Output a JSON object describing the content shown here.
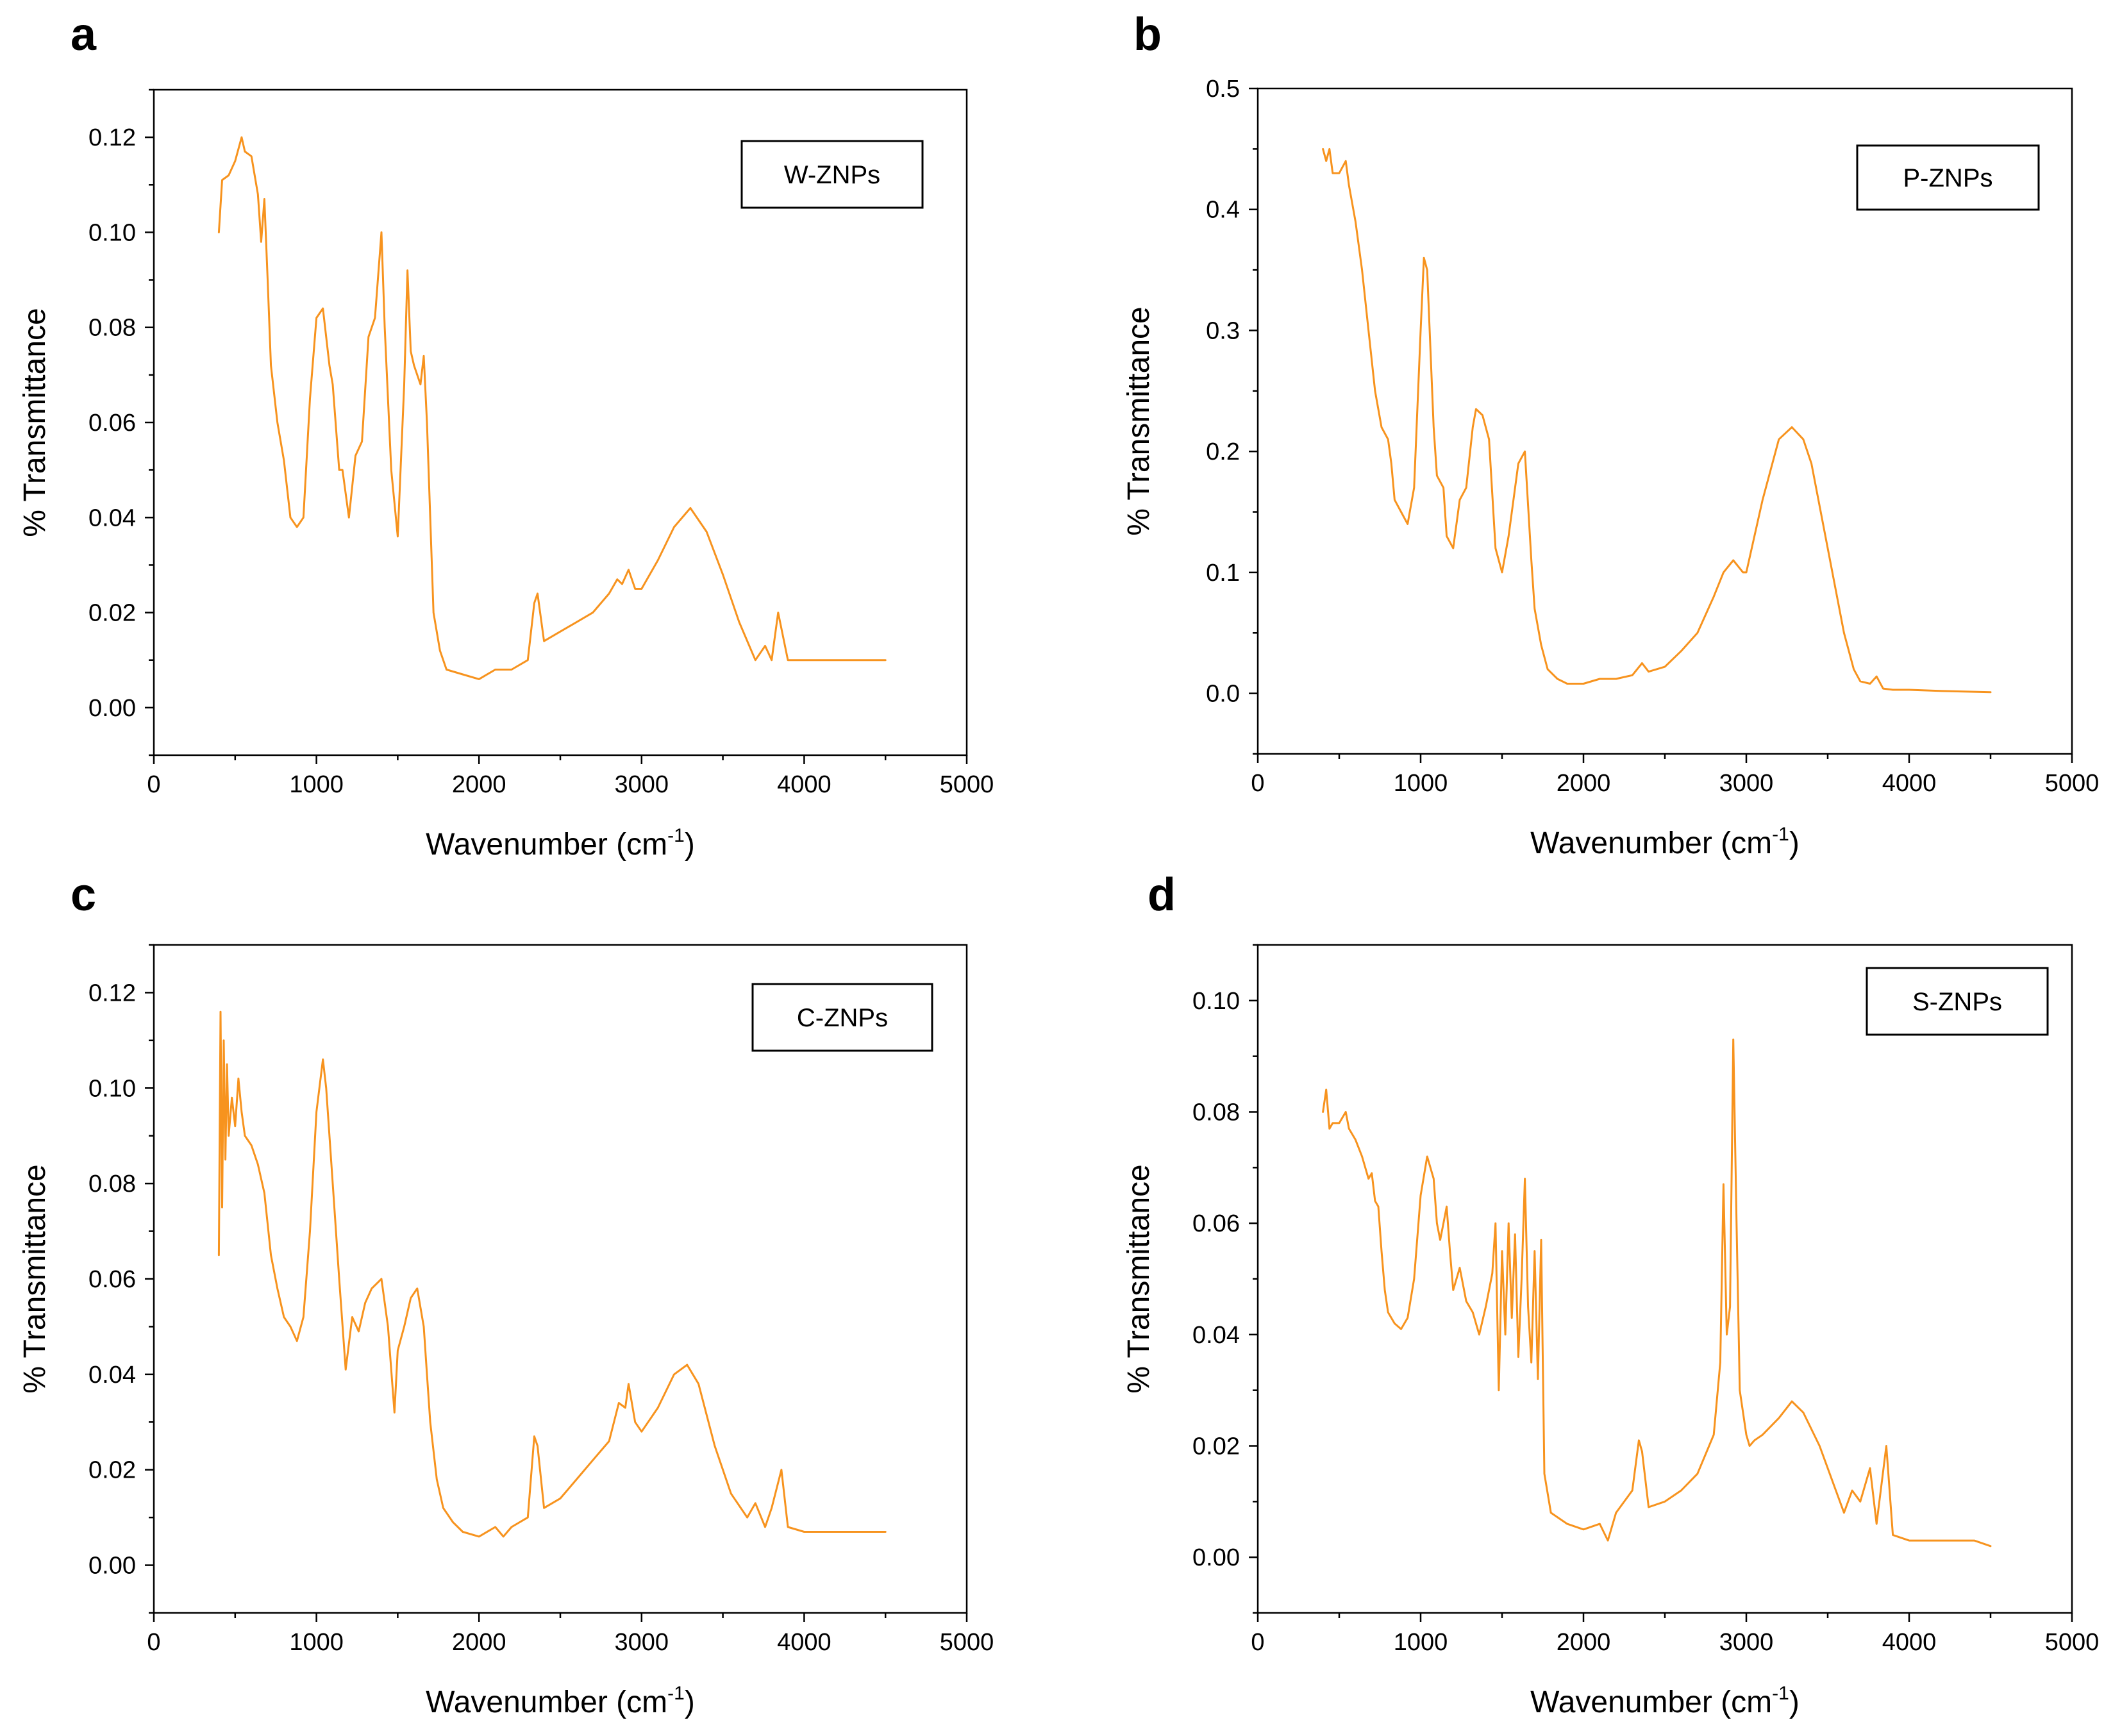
{
  "chart_data": [
    {
      "panel": "a",
      "type": "line",
      "legend": "W-ZNPs",
      "xlabel": "Wavenumber (cm",
      "xlabel_sup": "-1",
      "xlabel_end": ")",
      "ylabel": "% Transmittance",
      "xlim": [
        0,
        5000
      ],
      "ylim": [
        -0.01,
        0.13
      ],
      "xticks": [
        0,
        1000,
        2000,
        3000,
        4000,
        5000
      ],
      "xtick_labels": [
        "0",
        "1000",
        "2000",
        "3000",
        "4000",
        "5000"
      ],
      "yticks": [
        0,
        0.02,
        0.04,
        0.06,
        0.08,
        0.1,
        0.12
      ],
      "ytick_labels": [
        "0.00",
        "0.02",
        "0.04",
        "0.06",
        "0.08",
        "0.10",
        "0.12"
      ],
      "color": "#F7931E",
      "series": [
        {
          "name": "W-ZNPs",
          "x": [
            400,
            420,
            460,
            500,
            540,
            560,
            600,
            640,
            660,
            680,
            700,
            720,
            760,
            800,
            840,
            880,
            920,
            960,
            1000,
            1040,
            1080,
            1100,
            1140,
            1160,
            1200,
            1240,
            1280,
            1320,
            1360,
            1400,
            1420,
            1460,
            1500,
            1540,
            1560,
            1580,
            1600,
            1640,
            1660,
            1680,
            1700,
            1720,
            1760,
            1800,
            1900,
            2000,
            2100,
            2200,
            2300,
            2340,
            2360,
            2400,
            2500,
            2600,
            2700,
            2800,
            2850,
            2880,
            2920,
            2960,
            3000,
            3100,
            3200,
            3300,
            3400,
            3500,
            3600,
            3700,
            3760,
            3800,
            3840,
            3900,
            4000,
            4200,
            4500
          ],
          "y": [
            0.1,
            0.111,
            0.112,
            0.115,
            0.12,
            0.117,
            0.116,
            0.108,
            0.098,
            0.107,
            0.09,
            0.072,
            0.06,
            0.052,
            0.04,
            0.038,
            0.04,
            0.065,
            0.082,
            0.084,
            0.072,
            0.068,
            0.05,
            0.05,
            0.04,
            0.053,
            0.056,
            0.078,
            0.082,
            0.1,
            0.08,
            0.05,
            0.036,
            0.068,
            0.092,
            0.075,
            0.072,
            0.068,
            0.074,
            0.06,
            0.04,
            0.02,
            0.012,
            0.008,
            0.007,
            0.006,
            0.008,
            0.008,
            0.01,
            0.022,
            0.024,
            0.014,
            0.016,
            0.018,
            0.02,
            0.024,
            0.027,
            0.026,
            0.029,
            0.025,
            0.025,
            0.031,
            0.038,
            0.042,
            0.037,
            0.028,
            0.018,
            0.01,
            0.013,
            0.01,
            0.02,
            0.01,
            0.01,
            0.01,
            0.01
          ]
        }
      ]
    },
    {
      "panel": "b",
      "type": "line",
      "legend": "P-ZNPs",
      "xlabel": "Wavenumber (cm",
      "xlabel_sup": "-1",
      "xlabel_end": ")",
      "ylabel": "% Transmittance",
      "xlim": [
        0,
        5000
      ],
      "ylim": [
        -0.05,
        0.5
      ],
      "xticks": [
        0,
        1000,
        2000,
        3000,
        4000,
        5000
      ],
      "xtick_labels": [
        "0",
        "1000",
        "2000",
        "3000",
        "4000",
        "5000"
      ],
      "yticks": [
        0,
        0.1,
        0.2,
        0.3,
        0.4,
        0.5
      ],
      "ytick_labels": [
        "0.0",
        "0.1",
        "0.2",
        "0.3",
        "0.4",
        "0.5"
      ],
      "color": "#F7931E",
      "series": [
        {
          "name": "P-ZNPs",
          "x": [
            400,
            420,
            440,
            460,
            500,
            540,
            560,
            600,
            640,
            680,
            720,
            760,
            800,
            820,
            840,
            880,
            920,
            960,
            1000,
            1020,
            1040,
            1080,
            1100,
            1140,
            1160,
            1200,
            1240,
            1280,
            1320,
            1340,
            1380,
            1420,
            1460,
            1500,
            1540,
            1600,
            1640,
            1680,
            1700,
            1740,
            1780,
            1840,
            1900,
            2000,
            2100,
            2200,
            2300,
            2360,
            2400,
            2500,
            2600,
            2700,
            2800,
            2860,
            2920,
            2980,
            3000,
            3100,
            3200,
            3280,
            3350,
            3400,
            3500,
            3600,
            3660,
            3700,
            3760,
            3800,
            3840,
            3900,
            4000,
            4200,
            4500
          ],
          "y": [
            0.45,
            0.44,
            0.45,
            0.43,
            0.43,
            0.44,
            0.42,
            0.39,
            0.35,
            0.3,
            0.25,
            0.22,
            0.21,
            0.19,
            0.16,
            0.15,
            0.14,
            0.17,
            0.3,
            0.36,
            0.35,
            0.22,
            0.18,
            0.17,
            0.13,
            0.12,
            0.16,
            0.17,
            0.22,
            0.235,
            0.23,
            0.21,
            0.12,
            0.1,
            0.13,
            0.19,
            0.2,
            0.11,
            0.07,
            0.04,
            0.02,
            0.012,
            0.008,
            0.008,
            0.012,
            0.012,
            0.015,
            0.025,
            0.018,
            0.022,
            0.035,
            0.05,
            0.08,
            0.1,
            0.11,
            0.1,
            0.1,
            0.16,
            0.21,
            0.22,
            0.21,
            0.19,
            0.12,
            0.05,
            0.02,
            0.01,
            0.008,
            0.014,
            0.004,
            0.003,
            0.003,
            0.002,
            0.001
          ]
        }
      ]
    },
    {
      "panel": "c",
      "type": "line",
      "legend": "C-ZNPs",
      "xlabel": "Wavenumber (cm",
      "xlabel_sup": "-1",
      "xlabel_end": ")",
      "ylabel": "% Transmittance",
      "xlim": [
        0,
        5000
      ],
      "ylim": [
        -0.01,
        0.13
      ],
      "xticks": [
        0,
        1000,
        2000,
        3000,
        4000,
        5000
      ],
      "xtick_labels": [
        "0",
        "1000",
        "2000",
        "3000",
        "4000",
        "5000"
      ],
      "yticks": [
        0,
        0.02,
        0.04,
        0.06,
        0.08,
        0.1,
        0.12
      ],
      "ytick_labels": [
        "0.00",
        "0.02",
        "0.04",
        "0.06",
        "0.08",
        "0.10",
        "0.12"
      ],
      "color": "#F7931E",
      "series": [
        {
          "name": "C-ZNPs",
          "x": [
            400,
            410,
            420,
            430,
            440,
            450,
            460,
            480,
            500,
            520,
            540,
            560,
            600,
            640,
            680,
            720,
            760,
            800,
            840,
            880,
            920,
            960,
            1000,
            1040,
            1060,
            1100,
            1140,
            1180,
            1220,
            1260,
            1300,
            1340,
            1400,
            1440,
            1480,
            1500,
            1540,
            1580,
            1620,
            1660,
            1680,
            1700,
            1740,
            1780,
            1840,
            1900,
            2000,
            2100,
            2150,
            2200,
            2300,
            2340,
            2360,
            2400,
            2500,
            2600,
            2700,
            2800,
            2860,
            2900,
            2920,
            2960,
            3000,
            3100,
            3200,
            3280,
            3350,
            3450,
            3550,
            3650,
            3700,
            3760,
            3800,
            3860,
            3900,
            4000,
            4200,
            4500
          ],
          "y": [
            0.065,
            0.116,
            0.075,
            0.11,
            0.085,
            0.105,
            0.09,
            0.098,
            0.092,
            0.102,
            0.095,
            0.09,
            0.088,
            0.084,
            0.078,
            0.065,
            0.058,
            0.052,
            0.05,
            0.047,
            0.052,
            0.07,
            0.095,
            0.106,
            0.1,
            0.08,
            0.06,
            0.041,
            0.052,
            0.049,
            0.055,
            0.058,
            0.06,
            0.05,
            0.032,
            0.045,
            0.05,
            0.056,
            0.058,
            0.05,
            0.04,
            0.03,
            0.018,
            0.012,
            0.009,
            0.007,
            0.006,
            0.008,
            0.006,
            0.008,
            0.01,
            0.027,
            0.025,
            0.012,
            0.014,
            0.018,
            0.022,
            0.026,
            0.034,
            0.033,
            0.038,
            0.03,
            0.028,
            0.033,
            0.04,
            0.042,
            0.038,
            0.025,
            0.015,
            0.01,
            0.013,
            0.008,
            0.012,
            0.02,
            0.008,
            0.007,
            0.007,
            0.007
          ]
        }
      ]
    },
    {
      "panel": "d",
      "type": "line",
      "legend": "S-ZNPs",
      "xlabel": "Wavenumber (cm",
      "xlabel_sup": "-1",
      "xlabel_end": ")",
      "ylabel": "% Transmittance",
      "xlim": [
        0,
        5000
      ],
      "ylim": [
        -0.01,
        0.11
      ],
      "xticks": [
        0,
        1000,
        2000,
        3000,
        4000,
        5000
      ],
      "xtick_labels": [
        "0",
        "1000",
        "2000",
        "3000",
        "4000",
        "5000"
      ],
      "yticks": [
        0,
        0.02,
        0.04,
        0.06,
        0.08,
        0.1
      ],
      "ytick_labels": [
        "0.00",
        "0.02",
        "0.04",
        "0.06",
        "0.08",
        "0.10"
      ],
      "color": "#F7931E",
      "series": [
        {
          "name": "S-ZNPs",
          "x": [
            400,
            420,
            440,
            460,
            500,
            540,
            560,
            600,
            640,
            680,
            700,
            720,
            740,
            760,
            780,
            800,
            840,
            880,
            920,
            960,
            1000,
            1040,
            1080,
            1100,
            1120,
            1140,
            1160,
            1180,
            1200,
            1240,
            1280,
            1320,
            1360,
            1400,
            1440,
            1460,
            1480,
            1500,
            1520,
            1540,
            1560,
            1580,
            1600,
            1620,
            1640,
            1660,
            1680,
            1700,
            1720,
            1740,
            1760,
            1800,
            1900,
            2000,
            2100,
            2150,
            2200,
            2300,
            2340,
            2360,
            2400,
            2500,
            2600,
            2700,
            2800,
            2840,
            2860,
            2880,
            2900,
            2920,
            2940,
            2960,
            2980,
            3000,
            3020,
            3050,
            3100,
            3200,
            3280,
            3350,
            3450,
            3550,
            3600,
            3650,
            3700,
            3760,
            3800,
            3860,
            3900,
            4000,
            4200,
            4400,
            4500
          ],
          "y": [
            0.08,
            0.084,
            0.077,
            0.078,
            0.078,
            0.08,
            0.077,
            0.075,
            0.072,
            0.068,
            0.069,
            0.064,
            0.063,
            0.055,
            0.048,
            0.044,
            0.042,
            0.041,
            0.043,
            0.05,
            0.065,
            0.072,
            0.068,
            0.06,
            0.057,
            0.06,
            0.063,
            0.055,
            0.048,
            0.052,
            0.046,
            0.044,
            0.04,
            0.045,
            0.051,
            0.06,
            0.03,
            0.055,
            0.04,
            0.06,
            0.043,
            0.058,
            0.036,
            0.05,
            0.068,
            0.045,
            0.035,
            0.055,
            0.032,
            0.057,
            0.015,
            0.008,
            0.006,
            0.005,
            0.006,
            0.003,
            0.008,
            0.012,
            0.021,
            0.019,
            0.009,
            0.01,
            0.012,
            0.015,
            0.022,
            0.035,
            0.067,
            0.04,
            0.045,
            0.093,
            0.06,
            0.03,
            0.026,
            0.022,
            0.02,
            0.021,
            0.022,
            0.025,
            0.028,
            0.026,
            0.02,
            0.012,
            0.008,
            0.012,
            0.01,
            0.016,
            0.006,
            0.02,
            0.004,
            0.003,
            0.003,
            0.003,
            0.002
          ]
        }
      ]
    }
  ]
}
